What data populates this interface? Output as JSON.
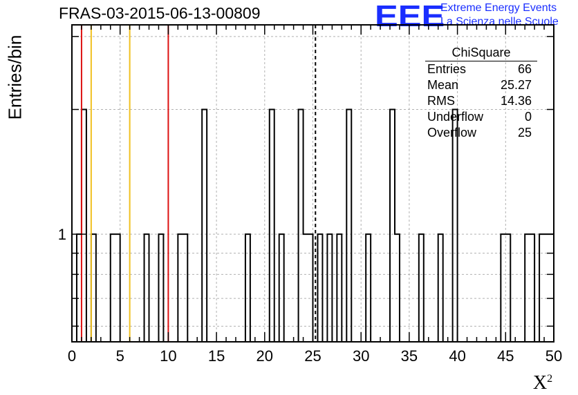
{
  "header": {
    "title": "FRAS-03-2015-06-13-00809",
    "logo_mark": "EEE",
    "logo_line1": "Extreme Energy Events",
    "logo_line2": "La Scienza nelle Scuole"
  },
  "stats_box": {
    "title": "ChiSquare",
    "rows": [
      {
        "name": "Entries",
        "value": "66"
      },
      {
        "name": "Mean",
        "value": "25.27"
      },
      {
        "name": "RMS",
        "value": "14.36"
      },
      {
        "name": "Underflow",
        "value": "0"
      },
      {
        "name": "Overflow",
        "value": "25"
      }
    ]
  },
  "chart_data": {
    "type": "bar",
    "title": "FRAS-03-2015-06-13-00809",
    "xlabel": "X²",
    "ylabel": "Entries/bin",
    "xlim": [
      0,
      50
    ],
    "ylog": true,
    "ylim": [
      0.55,
      3.2
    ],
    "grid": true,
    "x_ticks": [
      0,
      5,
      10,
      15,
      20,
      25,
      30,
      35,
      40,
      45,
      50
    ],
    "y_tick_labels": [
      {
        "value": 1,
        "label": "1"
      }
    ],
    "bin_width": 0.5,
    "bins": [
      {
        "x": 0.5,
        "count": 1
      },
      {
        "x": 1.0,
        "count": 2
      },
      {
        "x": 2.0,
        "count": 1
      },
      {
        "x": 4.0,
        "count": 1
      },
      {
        "x": 4.5,
        "count": 1
      },
      {
        "x": 7.5,
        "count": 1
      },
      {
        "x": 9.0,
        "count": 1
      },
      {
        "x": 11.0,
        "count": 1
      },
      {
        "x": 11.5,
        "count": 1
      },
      {
        "x": 13.5,
        "count": 2
      },
      {
        "x": 18.0,
        "count": 1
      },
      {
        "x": 20.5,
        "count": 2
      },
      {
        "x": 21.5,
        "count": 1
      },
      {
        "x": 23.5,
        "count": 2
      },
      {
        "x": 24.0,
        "count": 1
      },
      {
        "x": 24.5,
        "count": 1
      },
      {
        "x": 25.5,
        "count": 1
      },
      {
        "x": 26.5,
        "count": 1
      },
      {
        "x": 27.5,
        "count": 1
      },
      {
        "x": 28.5,
        "count": 2
      },
      {
        "x": 30.5,
        "count": 1
      },
      {
        "x": 33.0,
        "count": 2
      },
      {
        "x": 33.5,
        "count": 1
      },
      {
        "x": 36.0,
        "count": 1
      },
      {
        "x": 38.0,
        "count": 1
      },
      {
        "x": 39.5,
        "count": 2
      },
      {
        "x": 44.5,
        "count": 1
      },
      {
        "x": 45.0,
        "count": 1
      },
      {
        "x": 47.0,
        "count": 1
      },
      {
        "x": 47.5,
        "count": 1
      },
      {
        "x": 48.5,
        "count": 1
      },
      {
        "x": 49.0,
        "count": 1
      },
      {
        "x": 49.5,
        "count": 1
      }
    ],
    "vertical_lines": [
      {
        "x": 1,
        "color": "#dd1111",
        "style": "solid"
      },
      {
        "x": 2,
        "color": "#f0c020",
        "style": "solid"
      },
      {
        "x": 6,
        "color": "#f0c020",
        "style": "solid"
      },
      {
        "x": 10,
        "color": "#dd1111",
        "style": "solid"
      },
      {
        "x": 25.27,
        "color": "#000000",
        "style": "dashed"
      }
    ]
  }
}
